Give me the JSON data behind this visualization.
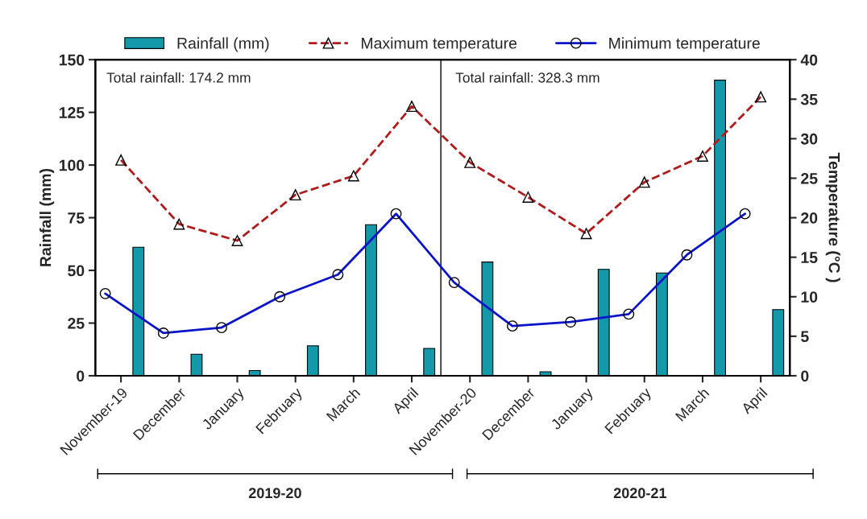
{
  "chart_data": {
    "type": "bar",
    "categories": [
      "November-19",
      "December",
      "January",
      "February",
      "March",
      "April",
      "November-20",
      "December",
      "January",
      "February",
      "March",
      "April"
    ],
    "series": [
      {
        "name": "Rainfall (mm)",
        "color": "#1499ab",
        "values": [
          61.0,
          10.2,
          2.5,
          14.2,
          71.7,
          13.0,
          54.0,
          1.9,
          50.5,
          48.8,
          140.3,
          31.4
        ]
      },
      {
        "name": "Maximum temperature",
        "type": "line",
        "axis": "y2",
        "color": "#b01c1c",
        "marker": "triangle",
        "line_style": "dashed",
        "values": [
          27.3,
          19.2,
          17.1,
          22.9,
          25.3,
          34.1,
          27.0,
          22.6,
          18.0,
          24.5,
          27.8,
          35.3
        ]
      },
      {
        "name": "Minimum temperature",
        "type": "line",
        "axis": "y2",
        "color": "#0a14c8",
        "marker": "circle",
        "line_style": "solid",
        "values": [
          10.4,
          5.4,
          6.1,
          10.0,
          12.8,
          20.5,
          11.8,
          6.3,
          6.8,
          7.8,
          15.3,
          20.5
        ]
      }
    ],
    "ylabel": "Rainfall (mm)",
    "y2label": "Temperature (°C )",
    "ylim": [
      0,
      150
    ],
    "yticks": [
      0,
      25,
      50,
      75,
      100,
      125,
      150
    ],
    "y2lim": [
      0,
      40
    ],
    "y2ticks": [
      0,
      5,
      10,
      15,
      20,
      25,
      30,
      35,
      40
    ],
    "annotations": [
      "Total rainfall: 174.2 mm",
      "Total rainfall: 328.3 mm",
      "2019-20",
      "2020-21"
    ],
    "legend": "top",
    "grid": false
  }
}
